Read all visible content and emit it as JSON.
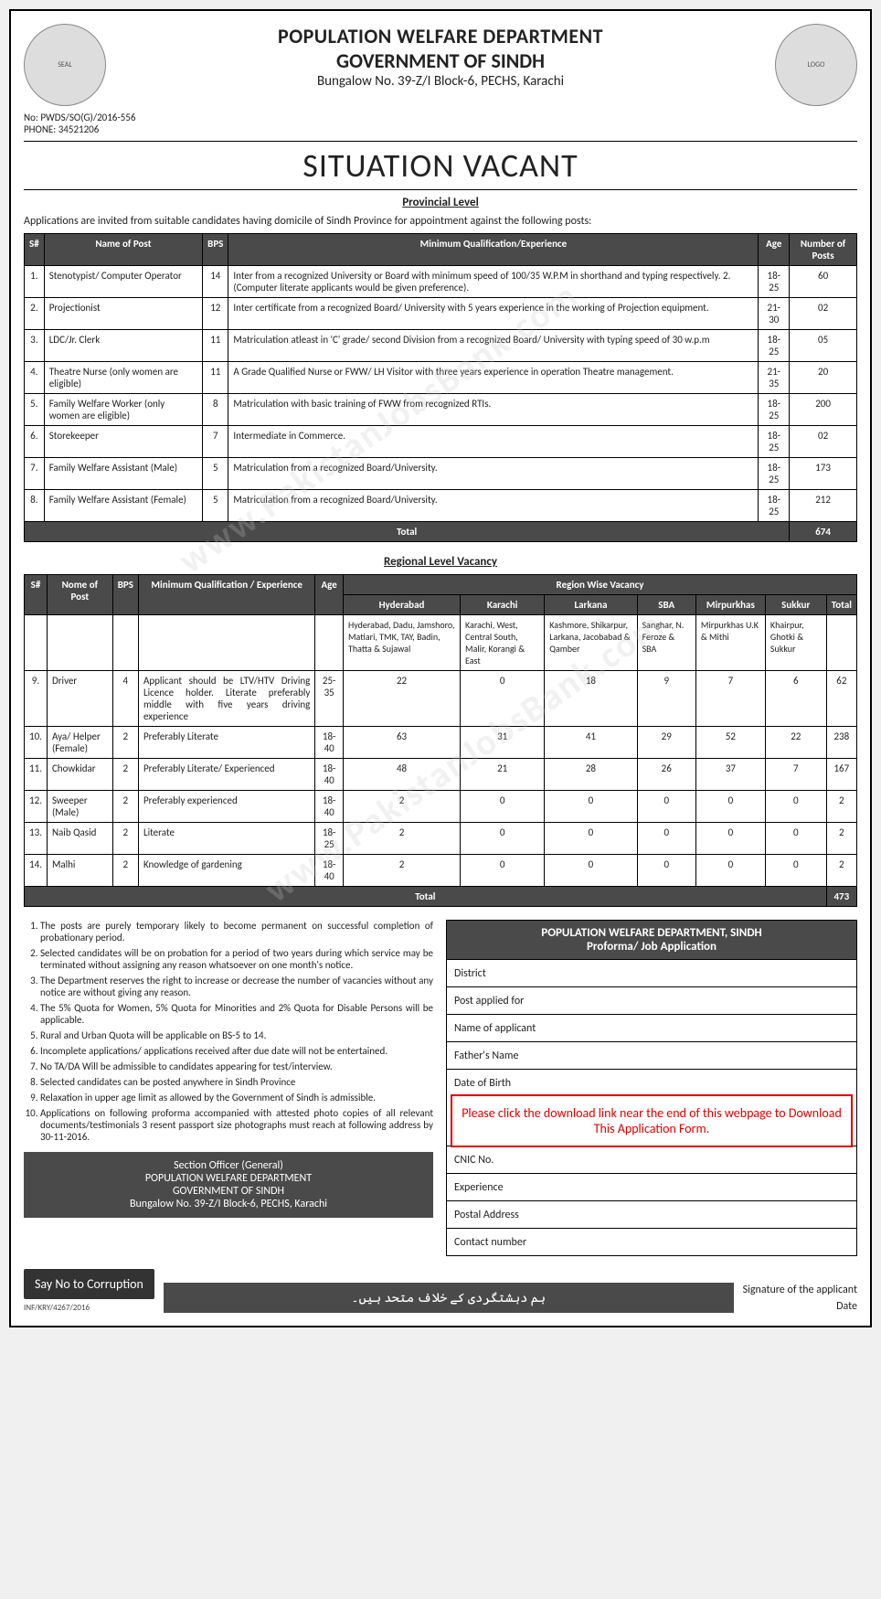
{
  "header": {
    "dept": "POPULATION WELFARE DEPARTMENT",
    "govt": "GOVERNMENT OF SINDH",
    "address": "Bungalow No. 39-Z/I Block-6, PECHS, Karachi",
    "ref_no": "No: PWDS/SO(G)/2016-556",
    "phone": "PHONE: 34521206",
    "title": "SITUATION VACANT",
    "subtitle": "Provincial Level",
    "intro": "Applications are invited from suitable candidates having domicile of Sindh Province for appointment against the following posts:"
  },
  "table1": {
    "columns": [
      "S#",
      "Name of Post",
      "BPS",
      "Minimum Qualification/Experience",
      "Age",
      "Number of Posts"
    ],
    "rows": [
      [
        "1.",
        "Stenotypist/ Computer Operator",
        "14",
        "Inter from a recognized University or Board with minimum speed of 100/35 W.P.M in shorthand and typing respectively.\n2. (Computer literate applicants would be given preference).",
        "18-25",
        "60"
      ],
      [
        "2.",
        "Projectionist",
        "12",
        "Inter certificate from a recognized Board/ University with 5 years experience in the working of Projection equipment.",
        "21-30",
        "02"
      ],
      [
        "3.",
        "LDC/Jr. Clerk",
        "11",
        "Matriculation atleast in 'C' grade/ second Division from a recognized Board/ University with typing speed of 30 w.p.m",
        "18-25",
        "05"
      ],
      [
        "4.",
        "Theatre Nurse (only women are eligible)",
        "11",
        "A Grade Qualified Nurse or FWW/ LH Visitor with three years experience in operation Theatre management.",
        "21-35",
        "20"
      ],
      [
        "5.",
        "Family Welfare Worker (only women are eligible)",
        "8",
        "Matriculation with basic training of FWW from recognized RTIs.",
        "18-25",
        "200"
      ],
      [
        "6.",
        "Storekeeper",
        "7",
        "Intermediate in Commerce.",
        "18-25",
        "02"
      ],
      [
        "7.",
        "Family Welfare Assistant (Male)",
        "5",
        "Matriculation from a recognized Board/University.",
        "18-25",
        "173"
      ],
      [
        "8.",
        "Family Welfare Assistant (Female)",
        "5",
        "Matriculation from a recognized Board/University.",
        "18-25",
        "212"
      ]
    ],
    "total_label": "Total",
    "total_value": "674"
  },
  "regional_title": "Regional Level Vacancy",
  "table2": {
    "group_header": "Region Wise Vacancy",
    "columns": [
      "S#",
      "Nome of Post",
      "BPS",
      "Minimum Qualification / Experience",
      "Age",
      "Hyderabad",
      "Karachi",
      "Larkana",
      "SBA",
      "Mirpurkhas",
      "Sukkur",
      "Total"
    ],
    "sub_row": [
      "",
      "",
      "",
      "",
      "",
      "Hyderabad, Dadu, Jamshoro, Matiari, TMK, TAY, Badin, Thatta & Sujawal",
      "Karachi, West, Central South, Malir, Korangi & East",
      "Kashmore, Shikarpur, Larkana, Jacobabad & Qamber",
      "Sanghar, N. Feroze & SBA",
      "Mirpurkhas U.K & Mithi",
      "Khairpur, Ghotki & Sukkur",
      ""
    ],
    "rows": [
      [
        "9.",
        "Driver",
        "4",
        "Applicant should be LTV/HTV Driving Licence holder. Literate preferably middle with five years driving experience",
        "25-35",
        "22",
        "0",
        "18",
        "9",
        "7",
        "6",
        "62"
      ],
      [
        "10.",
        "Aya/ Helper (Female)",
        "2",
        "Preferably Literate",
        "18-40",
        "63",
        "31",
        "41",
        "29",
        "52",
        "22",
        "238"
      ],
      [
        "11.",
        "Chowkidar",
        "2",
        "Preferably Literate/ Experienced",
        "18-40",
        "48",
        "21",
        "28",
        "26",
        "37",
        "7",
        "167"
      ],
      [
        "12.",
        "Sweeper (Male)",
        "2",
        "Preferably experienced",
        "18-40",
        "2",
        "0",
        "0",
        "0",
        "0",
        "0",
        "2"
      ],
      [
        "13.",
        "Naib Qasid",
        "2",
        "Literate",
        "18-25",
        "2",
        "0",
        "0",
        "0",
        "0",
        "0",
        "2"
      ],
      [
        "14.",
        "Malhi",
        "2",
        "Knowledge of gardening",
        "18-40",
        "2",
        "0",
        "0",
        "0",
        "0",
        "0",
        "2"
      ]
    ],
    "total_label": "Total",
    "total_value": "473"
  },
  "notes": [
    "The posts are purely temporary likely to become permanent on successful completion of probationary period.",
    "Selected candidates will be on probation for a period of two years during which service may be terminated without assigning any reason whatsoever on one month's notice.",
    "The Department reserves the right to increase or decrease the number of vacancies without any notice are without giving any reason.",
    "The 5% Quota for Women, 5% Quota for Minorities and 2% Quota for Disable Persons will be applicable.",
    "Rural and Urban Quota will be applicable on BS-5 to 14.",
    "Incomplete applications/ applications received after due date will not be entertained.",
    "No TA/DA Will be admissible to candidates appearing for test/interview.",
    "Selected candidates can be posted anywhere in Sindh Province",
    "Relaxation in upper age limit as allowed by the Government of Sindh is admissible.",
    "Applications on following proforma accompanied with attested photo copies of all relevant documents/testimonials 3 resent passport size photographs must reach at following address by 30-11-2016."
  ],
  "contact_block": {
    "l1": "Section Officer (General)",
    "l2": "POPULATION WELFARE DEPARTMENT",
    "l3": "GOVERNMENT OF SINDH",
    "l4": "Bungalow No. 39-Z/I Block-6, PECHS, Karachi"
  },
  "form": {
    "heading1": "POPULATION WELFARE DEPARTMENT, SINDH",
    "heading2": "Proforma/ Job Application",
    "fields": [
      "District",
      "Post applied for",
      "Name of applicant",
      "Father's Name",
      "Date of Birth",
      "",
      "",
      "CNIC No.",
      "Experience",
      "Postal Address",
      "Contact number"
    ],
    "overlay": "Please click the download link near the end of this webpage to Download This Application Form."
  },
  "footer": {
    "corruption": "Say No to Corruption",
    "urdu": "ہم دہشتگردی کے خلاف متحد ہیں۔",
    "sig1": "Signature of the applicant",
    "sig2": "Date",
    "inf": "INF/KRY/4267/2016"
  },
  "watermark": "www.PakistanJobsBank.com"
}
